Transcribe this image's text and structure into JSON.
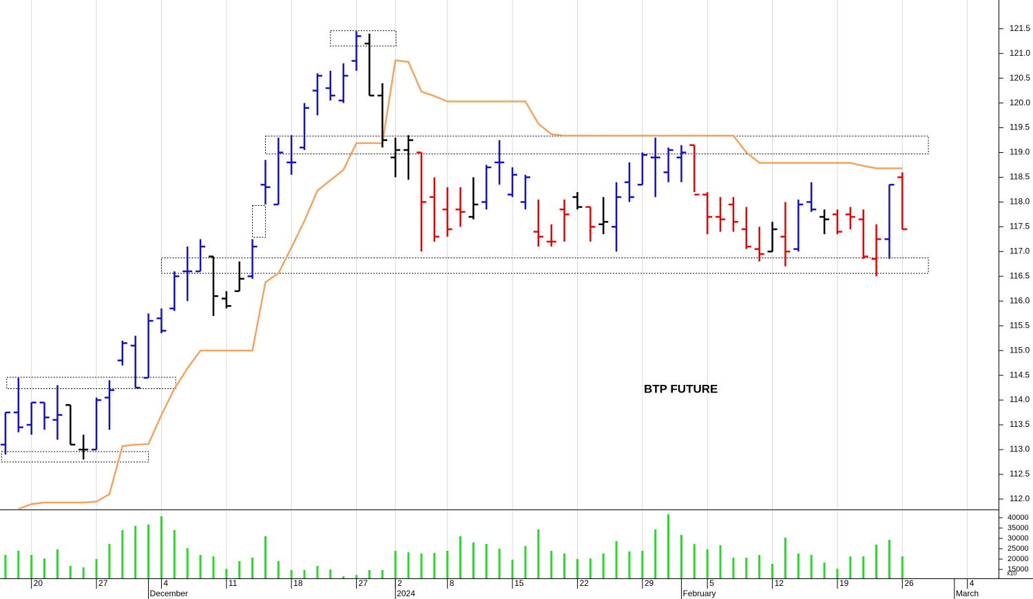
{
  "chart_data": [
    {
      "type": "ohlc",
      "title": "BTP FUTURE",
      "xlim": [
        -0.42,
        76.4
      ],
      "ylim": [
        111.79,
        122.08
      ],
      "yticks": [
        {
          "value": 112,
          "label": "112.0"
        },
        112.5,
        {
          "value": 113,
          "label": "113.0"
        },
        113.5,
        {
          "value": 114,
          "label": "114.0"
        },
        114.5,
        {
          "value": 115,
          "label": "115.0"
        },
        115.5,
        {
          "value": 116,
          "label": "116.0"
        },
        116.5,
        {
          "value": 117,
          "label": "117.0"
        },
        117.5,
        {
          "value": 118,
          "label": "118.0"
        },
        118.5,
        {
          "value": 119,
          "label": "119.0"
        },
        119.5,
        {
          "value": 120,
          "label": "120.0"
        },
        120.5,
        {
          "value": 121,
          "label": "121.0"
        },
        121.5
      ],
      "open": [
        113.1,
        113.75,
        113.5,
        113.95,
        113.6,
        113.9,
        113.0,
        113.0,
        114.05,
        114.8,
        115.1,
        114.45,
        115.65,
        115.85,
        116.6,
        116.6,
        116.9,
        116.05,
        116.2,
        116.5,
        118.35,
        117.95,
        118.8,
        119.1,
        120.25,
        120.3,
        120.05,
        120.85,
        121.2,
        120.15,
        118.9,
        119.05,
        119.0,
        118.1,
        117.85,
        117.85,
        117.7,
        118.0,
        118.8,
        118.15,
        118.0,
        117.4,
        117.2,
        117.85,
        118.1,
        117.9,
        117.55,
        117.5,
        118.4,
        118.35,
        118.9,
        118.6,
        118.9,
        119.15,
        118.15,
        117.7,
        117.95,
        117.45,
        117.05,
        117.0,
        117.3,
        117.05,
        118.0,
        117.7,
        117.75,
        117.75,
        117.65,
        116.85,
        117.25,
        118.5
      ],
      "high": [
        113.75,
        114.45,
        113.95,
        113.95,
        114.3,
        113.9,
        113.3,
        114.05,
        114.4,
        115.2,
        115.3,
        115.75,
        115.85,
        116.6,
        117.1,
        117.25,
        116.9,
        116.2,
        116.8,
        117.25,
        118.85,
        119.3,
        119.35,
        120.0,
        120.6,
        120.65,
        120.8,
        121.45,
        121.4,
        120.4,
        119.3,
        119.35,
        119.0,
        118.5,
        118.3,
        118.3,
        118.5,
        118.75,
        119.25,
        118.7,
        118.55,
        118.05,
        117.55,
        118.05,
        118.2,
        117.9,
        118.1,
        118.4,
        118.8,
        119.0,
        119.3,
        119.1,
        119.15,
        119.15,
        118.2,
        118.1,
        118.1,
        117.9,
        117.5,
        117.6,
        118.0,
        118.05,
        118.4,
        117.85,
        117.85,
        117.9,
        117.85,
        117.55,
        118.35,
        118.6
      ],
      "low": [
        112.9,
        113.35,
        113.3,
        113.4,
        113.2,
        113.1,
        112.8,
        113.0,
        113.4,
        114.7,
        114.25,
        114.45,
        115.35,
        115.8,
        116.0,
        116.6,
        115.7,
        115.85,
        116.2,
        116.45,
        117.95,
        117.95,
        118.55,
        119.05,
        119.75,
        120.05,
        120.0,
        120.65,
        120.15,
        119.1,
        118.5,
        118.45,
        117.0,
        117.2,
        117.3,
        117.5,
        117.65,
        117.85,
        118.35,
        118.1,
        117.85,
        117.1,
        117.1,
        117.2,
        117.85,
        117.2,
        117.35,
        117.0,
        118.0,
        118.35,
        118.1,
        118.4,
        118.4,
        118.2,
        117.35,
        117.4,
        117.4,
        117.05,
        116.8,
        117.0,
        116.7,
        117.0,
        117.8,
        117.35,
        117.35,
        117.45,
        116.85,
        116.5,
        116.85,
        117.45
      ],
      "close": [
        113.75,
        113.45,
        113.95,
        113.65,
        113.7,
        113.1,
        113.0,
        114.0,
        114.2,
        115.15,
        114.25,
        115.6,
        115.4,
        116.5,
        116.6,
        117.1,
        116.1,
        115.9,
        116.45,
        117.1,
        118.3,
        119.0,
        118.8,
        119.9,
        120.55,
        120.15,
        120.55,
        121.35,
        120.15,
        119.25,
        119.05,
        119.25,
        118.0,
        117.3,
        117.45,
        117.8,
        117.95,
        118.7,
        118.8,
        118.55,
        118.5,
        117.3,
        117.2,
        117.75,
        117.9,
        117.5,
        117.6,
        118.1,
        118.1,
        118.95,
        118.9,
        119.05,
        119.0,
        118.15,
        117.7,
        117.65,
        117.6,
        117.1,
        116.95,
        117.45,
        117.0,
        117.95,
        117.85,
        117.65,
        117.4,
        117.7,
        116.9,
        117.25,
        118.35,
        117.45
      ],
      "colors": [
        "#1010c8",
        "#1010c8",
        "#1010c8",
        "#1010c8",
        "#1010c8",
        "#000000",
        "#000000",
        "#1010c8",
        "#1010c8",
        "#1010c8",
        "#1010c8",
        "#1010c8",
        "#1010c8",
        "#1010c8",
        "#1010c8",
        "#1010c8",
        "#000000",
        "#000000",
        "#000000",
        "#1010c8",
        "#1010c8",
        "#1010c8",
        "#1010c8",
        "#1010c8",
        "#1010c8",
        "#1010c8",
        "#1010c8",
        "#1010c8",
        "#000000",
        "#000000",
        "#000000",
        "#000000",
        "#e80000",
        "#e80000",
        "#e80000",
        "#e80000",
        "#000000",
        "#1010c8",
        "#1010c8",
        "#1010c8",
        "#1010c8",
        "#e80000",
        "#e80000",
        "#e80000",
        "#000000",
        "#e80000",
        "#000000",
        "#1010c8",
        "#1010c8",
        "#1010c8",
        "#1010c8",
        "#1010c8",
        "#1010c8",
        "#e80000",
        "#e80000",
        "#e80000",
        "#e80000",
        "#e80000",
        "#e80000",
        "#000000",
        "#e80000",
        "#1010c8",
        "#1010c8",
        "#000000",
        "#e80000",
        "#e80000",
        "#e80000",
        "#e80000",
        "#1010c8",
        "#e80000"
      ],
      "line": {
        "color": "#f5a35c",
        "values": [
          null,
          111.8,
          111.9,
          111.93,
          111.93,
          111.93,
          111.93,
          111.95,
          112.1,
          113.07,
          113.1,
          113.11,
          113.7,
          114.23,
          114.64,
          115.0,
          115.0,
          115.0,
          115.0,
          115.0,
          116.38,
          116.56,
          117.08,
          117.62,
          118.23,
          118.44,
          118.65,
          119.19,
          119.19,
          119.19,
          120.86,
          120.83,
          120.23,
          120.14,
          120.03,
          120.03,
          120.03,
          120.03,
          120.03,
          120.03,
          120.03,
          119.58,
          119.37,
          119.34,
          119.34,
          119.34,
          119.34,
          119.34,
          119.34,
          119.34,
          119.34,
          119.34,
          119.34,
          119.34,
          119.34,
          119.34,
          119.34,
          119.0,
          118.79,
          118.79,
          118.79,
          118.79,
          118.79,
          118.79,
          118.79,
          118.79,
          118.73,
          118.68,
          118.68,
          118.68
        ]
      },
      "boxes": [
        {
          "x": [
            25.0,
            30.05
          ],
          "y": [
            121.46,
            121.15
          ]
        },
        {
          "x": [
            20.0,
            71.0
          ],
          "y": [
            119.33,
            118.97
          ]
        },
        {
          "x": [
            19.0,
            20.0
          ],
          "y": [
            117.93,
            117.29
          ]
        },
        {
          "x": [
            12.0,
            71.0
          ],
          "y": [
            116.87,
            116.56
          ]
        },
        {
          "x": [
            0.1,
            13.1
          ],
          "y": [
            114.46,
            114.23
          ]
        },
        {
          "x": [
            -0.3,
            11.0
          ],
          "y": [
            112.96,
            112.75
          ]
        }
      ]
    },
    {
      "type": "bar",
      "color": "#22dd22",
      "annotation": "x10",
      "xlim": [
        -0.42,
        76.4
      ],
      "ylim": [
        10700,
        43300
      ],
      "yticks": [
        15000,
        20000,
        25000,
        30000,
        35000,
        40000
      ],
      "values": [
        22000,
        24000,
        22000,
        20300,
        24700,
        16700,
        16000,
        20000,
        27300,
        34000,
        36000,
        36700,
        40700,
        34000,
        25300,
        22000,
        21300,
        15300,
        19000,
        20700,
        31000,
        19000,
        14700,
        14700,
        16700,
        15000,
        11700,
        12300,
        14700,
        14700,
        24000,
        23300,
        22700,
        23000,
        24000,
        31000,
        28000,
        27300,
        25000,
        19700,
        26300,
        34300,
        24000,
        22700,
        20000,
        20300,
        22700,
        28700,
        23700,
        24000,
        34300,
        41700,
        31700,
        27300,
        24700,
        26700,
        20700,
        20700,
        22000,
        17700,
        30300,
        22700,
        22000,
        18300,
        15300,
        21300,
        21300,
        27000,
        29300,
        21300
      ],
      "xticks": [
        {
          "value": 2,
          "label": "20"
        },
        {
          "value": 7,
          "label": "27"
        },
        {
          "value": 12,
          "label": "4"
        },
        {
          "value": 17,
          "label": "11"
        },
        {
          "value": 22,
          "label": "18"
        },
        {
          "value": 27,
          "label": "27"
        },
        {
          "value": 30,
          "label": "2"
        },
        {
          "value": 34,
          "label": "8"
        },
        {
          "value": 39,
          "label": "15"
        },
        {
          "value": 44,
          "label": "22"
        },
        {
          "value": 49,
          "label": "29"
        },
        {
          "value": 54,
          "label": "5"
        },
        {
          "value": 59,
          "label": "12"
        },
        {
          "value": 64,
          "label": "19"
        },
        {
          "value": 69,
          "label": "26"
        },
        {
          "value": 74,
          "label": "4"
        }
      ],
      "months": [
        {
          "value": 11,
          "label": "December"
        },
        {
          "value": 30,
          "label": "2024"
        },
        {
          "value": 52,
          "label": "February"
        },
        {
          "value": 73,
          "label": "March"
        }
      ]
    }
  ]
}
